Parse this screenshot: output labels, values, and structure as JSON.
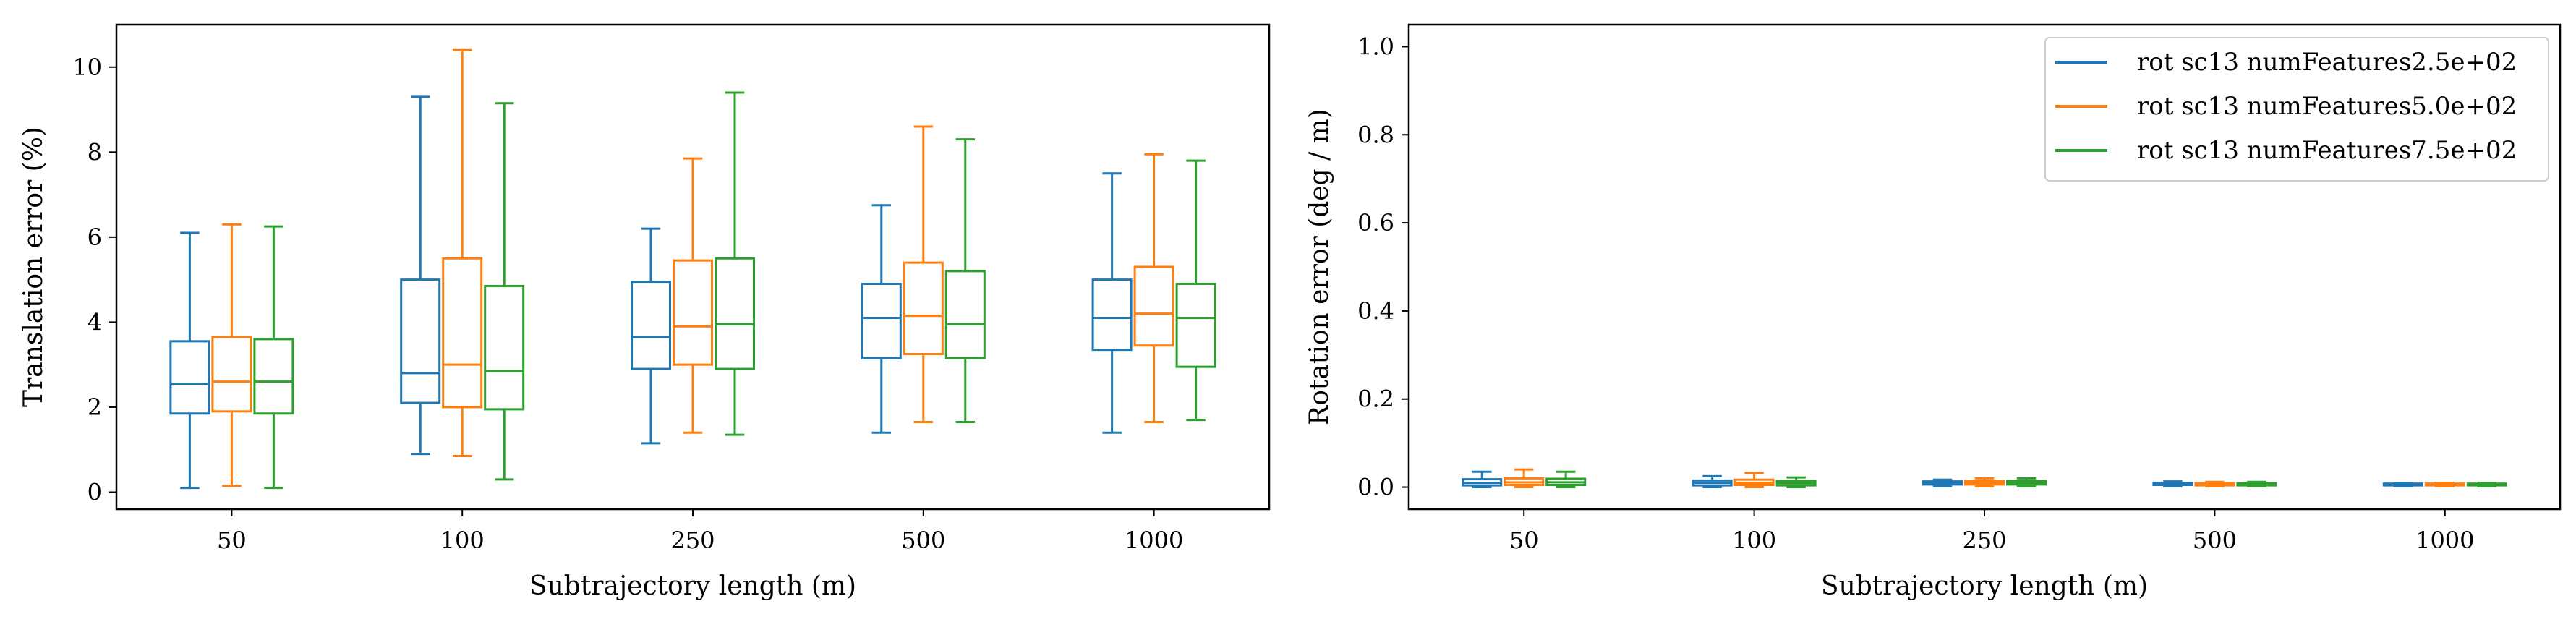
{
  "chart_data": [
    {
      "type": "box",
      "xlabel": "Subtrajectory length (m)",
      "ylabel": "Translation error (%)",
      "categories": [
        "50",
        "100",
        "250",
        "500",
        "1000"
      ],
      "ylim": [
        -0.4,
        11.0
      ],
      "yticks": [
        0,
        2,
        4,
        6,
        8,
        10
      ],
      "yticklabels": [
        "0",
        "2",
        "4",
        "6",
        "8",
        "10"
      ],
      "grid": false,
      "series": [
        {
          "color": "#1f77b4",
          "boxes": [
            {
              "whislo": 0.1,
              "q1": 1.85,
              "med": 2.55,
              "q3": 3.55,
              "whishi": 6.1
            },
            {
              "whislo": 0.9,
              "q1": 2.1,
              "med": 2.8,
              "q3": 5.0,
              "whishi": 9.3
            },
            {
              "whislo": 1.15,
              "q1": 2.9,
              "med": 3.65,
              "q3": 4.95,
              "whishi": 6.2
            },
            {
              "whislo": 1.4,
              "q1": 3.15,
              "med": 4.1,
              "q3": 4.9,
              "whishi": 6.75
            },
            {
              "whislo": 1.4,
              "q1": 3.35,
              "med": 4.1,
              "q3": 5.0,
              "whishi": 7.5
            }
          ]
        },
        {
          "color": "#ff7f0e",
          "boxes": [
            {
              "whislo": 0.15,
              "q1": 1.9,
              "med": 2.6,
              "q3": 3.65,
              "whishi": 6.3
            },
            {
              "whislo": 0.85,
              "q1": 2.0,
              "med": 3.0,
              "q3": 5.5,
              "whishi": 10.4
            },
            {
              "whislo": 1.4,
              "q1": 3.0,
              "med": 3.9,
              "q3": 5.45,
              "whishi": 7.85
            },
            {
              "whislo": 1.65,
              "q1": 3.25,
              "med": 4.15,
              "q3": 5.4,
              "whishi": 8.6
            },
            {
              "whislo": 1.65,
              "q1": 3.45,
              "med": 4.2,
              "q3": 5.3,
              "whishi": 7.95
            }
          ]
        },
        {
          "color": "#2ca02c",
          "boxes": [
            {
              "whislo": 0.1,
              "q1": 1.85,
              "med": 2.6,
              "q3": 3.6,
              "whishi": 6.25
            },
            {
              "whislo": 0.3,
              "q1": 1.95,
              "med": 2.85,
              "q3": 4.85,
              "whishi": 9.15
            },
            {
              "whislo": 1.35,
              "q1": 2.9,
              "med": 3.95,
              "q3": 5.5,
              "whishi": 9.4
            },
            {
              "whislo": 1.65,
              "q1": 3.15,
              "med": 3.95,
              "q3": 5.2,
              "whishi": 8.3
            },
            {
              "whislo": 1.7,
              "q1": 2.95,
              "med": 4.1,
              "q3": 4.9,
              "whishi": 7.8
            }
          ]
        }
      ]
    },
    {
      "type": "box",
      "xlabel": "Subtrajectory length (m)",
      "ylabel": "Rotation error (deg / m)",
      "categories": [
        "50",
        "100",
        "250",
        "500",
        "1000"
      ],
      "ylim": [
        -0.05,
        1.05
      ],
      "yticks": [
        0.0,
        0.2,
        0.4,
        0.6,
        0.8,
        1.0
      ],
      "yticklabels": [
        "0.0",
        "0.2",
        "0.4",
        "0.6",
        "0.8",
        "1.0"
      ],
      "grid": false,
      "legend_position": "top-right",
      "series": [
        {
          "name": "rot sc13 numFeatures2.5e+02",
          "color": "#1f77b4",
          "boxes": [
            {
              "whislo": 0.0,
              "q1": 0.004,
              "med": 0.01,
              "q3": 0.018,
              "whishi": 0.035
            },
            {
              "whislo": 0.0,
              "q1": 0.004,
              "med": 0.01,
              "q3": 0.015,
              "whishi": 0.025
            },
            {
              "whislo": 0.002,
              "q1": 0.006,
              "med": 0.009,
              "q3": 0.013,
              "whishi": 0.017
            },
            {
              "whislo": 0.002,
              "q1": 0.005,
              "med": 0.008,
              "q3": 0.01,
              "whishi": 0.013
            },
            {
              "whislo": 0.002,
              "q1": 0.004,
              "med": 0.006,
              "q3": 0.008,
              "whishi": 0.01
            }
          ]
        },
        {
          "name": "rot sc13 numFeatures5.0e+02",
          "color": "#ff7f0e",
          "boxes": [
            {
              "whislo": 0.0,
              "q1": 0.005,
              "med": 0.011,
              "q3": 0.02,
              "whishi": 0.04
            },
            {
              "whislo": 0.0,
              "q1": 0.005,
              "med": 0.01,
              "q3": 0.017,
              "whishi": 0.032
            },
            {
              "whislo": 0.002,
              "q1": 0.006,
              "med": 0.009,
              "q3": 0.014,
              "whishi": 0.02
            },
            {
              "whislo": 0.002,
              "q1": 0.004,
              "med": 0.007,
              "q3": 0.009,
              "whishi": 0.012
            },
            {
              "whislo": 0.002,
              "q1": 0.004,
              "med": 0.006,
              "q3": 0.008,
              "whishi": 0.01
            }
          ]
        },
        {
          "name": "rot sc13 numFeatures7.5e+02",
          "color": "#2ca02c",
          "boxes": [
            {
              "whislo": 0.0,
              "q1": 0.005,
              "med": 0.011,
              "q3": 0.019,
              "whishi": 0.035
            },
            {
              "whislo": 0.0,
              "q1": 0.004,
              "med": 0.009,
              "q3": 0.014,
              "whishi": 0.022
            },
            {
              "whislo": 0.002,
              "q1": 0.006,
              "med": 0.009,
              "q3": 0.014,
              "whishi": 0.02
            },
            {
              "whislo": 0.002,
              "q1": 0.004,
              "med": 0.007,
              "q3": 0.009,
              "whishi": 0.012
            },
            {
              "whislo": 0.002,
              "q1": 0.004,
              "med": 0.006,
              "q3": 0.008,
              "whishi": 0.01
            }
          ]
        }
      ]
    }
  ]
}
